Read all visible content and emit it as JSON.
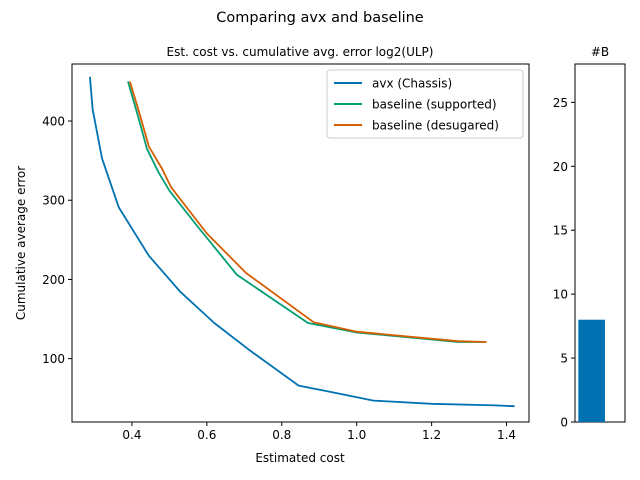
{
  "figure": {
    "suptitle": "Comparing avx and baseline"
  },
  "chart_data": [
    {
      "type": "line",
      "title": "Est. cost vs. cumulative avg. error log2(ULP)",
      "xlabel": "Estimated cost",
      "ylabel": "Cumulative average error",
      "xlim": [
        0.24,
        1.46
      ],
      "ylim": [
        20,
        472
      ],
      "xticks": [
        0.4,
        0.6,
        0.8,
        1.0,
        1.2,
        1.4
      ],
      "xtick_labels": [
        "0.4",
        "0.6",
        "0.8",
        "1.0",
        "1.2",
        "1.4"
      ],
      "yticks": [
        100,
        200,
        300,
        400
      ],
      "ytick_labels": [
        "100",
        "200",
        "300",
        "400"
      ],
      "grid": false,
      "legend_position": "upper right",
      "series": [
        {
          "name": "avx (Chassis)",
          "color": "#0072B2",
          "x": [
            0.288,
            0.295,
            0.32,
            0.365,
            0.445,
            0.53,
            0.62,
            0.71,
            0.845,
            0.92,
            1.045,
            1.2,
            1.37,
            1.42
          ],
          "y": [
            455,
            415,
            353,
            291,
            230,
            184,
            145,
            112,
            66,
            59,
            47,
            43,
            41,
            40
          ]
        },
        {
          "name": "baseline (supported)",
          "color": "#009E73",
          "x": [
            0.39,
            0.415,
            0.44,
            0.47,
            0.5,
            0.57,
            0.68,
            0.87,
            1.0,
            1.27,
            1.34
          ],
          "y": [
            449,
            408,
            365,
            336,
            312,
            270,
            206,
            145,
            133,
            121,
            121
          ]
        },
        {
          "name": "baseline (desugared)",
          "color": "#D55E00",
          "x": [
            0.395,
            0.42,
            0.445,
            0.48,
            0.505,
            0.6,
            0.705,
            0.885,
            1.0,
            1.27,
            1.345
          ],
          "y": [
            449,
            410,
            368,
            340,
            316,
            258,
            208,
            146,
            134,
            122,
            121
          ]
        }
      ]
    },
    {
      "type": "bar",
      "title": "#B",
      "xlim": [
        -0.5,
        1.0
      ],
      "ylim": [
        0,
        28
      ],
      "yticks": [
        0,
        5,
        10,
        15,
        20,
        25
      ],
      "ytick_labels": [
        "0",
        "5",
        "10",
        "15",
        "20",
        "25"
      ],
      "grid": false,
      "series": [
        {
          "color": "#0072B2",
          "values": [
            8
          ]
        }
      ]
    }
  ]
}
